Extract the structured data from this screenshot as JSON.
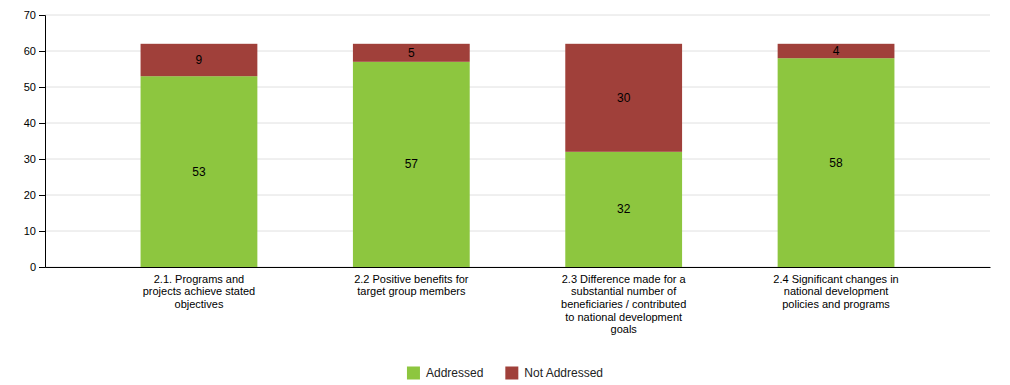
{
  "chart_data": {
    "type": "bar",
    "stacked": true,
    "categories": [
      "2.1. Programs and\nprojects achieve stated\nobjectives",
      "2.2 Positive benefits for\ntarget group members",
      "2.3 Difference made for a\nsubstantial number of\nbeneficiaries / contributed\nto national development\ngoals",
      "2.4 Significant changes in\nnational development\npolicies and programs"
    ],
    "series": [
      {
        "name": "Addressed",
        "color": "#8DC63F",
        "values": [
          53,
          57,
          32,
          58
        ]
      },
      {
        "name": "Not Addressed",
        "color": "#A0403A",
        "values": [
          9,
          5,
          30,
          4
        ]
      }
    ],
    "ylim": [
      0,
      70
    ],
    "yticks": [
      0,
      10,
      20,
      30,
      40,
      50,
      60,
      70
    ],
    "grid": true,
    "data_labels": true,
    "legend": "bottom"
  }
}
